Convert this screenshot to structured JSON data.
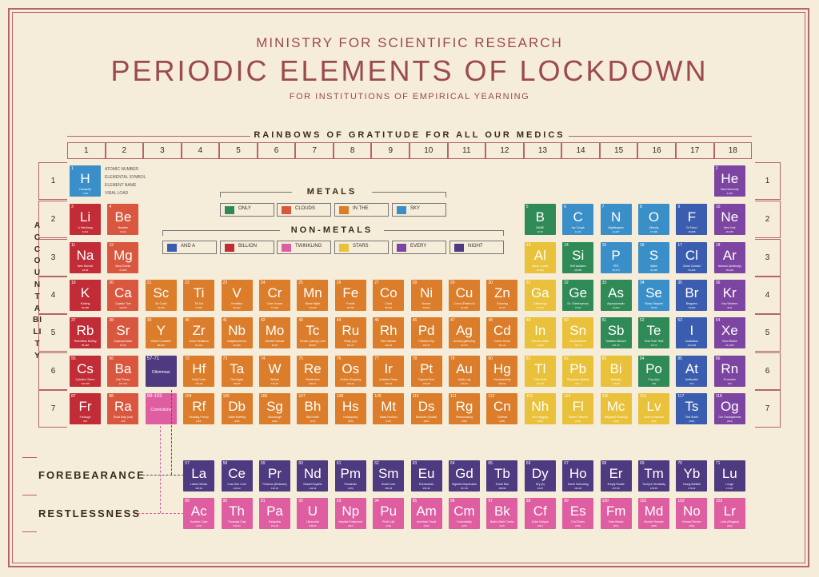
{
  "header": {
    "ministry": "MINISTRY FOR SCIENTIFIC RESEARCH",
    "title": "PERIODIC ELEMENTS OF LOCKDOWN",
    "subtitle": "FOR INSTITUTIONS OF EMPIRICAL YEARNING",
    "banner": "RAINBOWS OF GRATITUDE FOR ALL OUR MEDICS"
  },
  "groups": [
    "1",
    "2",
    "3",
    "4",
    "5",
    "6",
    "7",
    "8",
    "9",
    "10",
    "11",
    "12",
    "13",
    "14",
    "15",
    "16",
    "17",
    "18"
  ],
  "periods": [
    "1",
    "2",
    "3",
    "4",
    "5",
    "6",
    "7"
  ],
  "side_label": "ACCOUNTABILITY",
  "key": {
    "atomic": "ATOMIC NUMBER",
    "symbol": "ELEMENTAL SYMBOL",
    "name": "ELEMENT NAME",
    "load": "VIRAL LOAD"
  },
  "legend": {
    "metals_title": "METALS",
    "nonmetals_title": "NON-METALS",
    "metals": [
      {
        "label": "ONLY",
        "color": "#2f8a57"
      },
      {
        "label": "CLOUDS",
        "color": "#d9573f"
      },
      {
        "label": "IN THE",
        "color": "#db7d2a"
      },
      {
        "label": "SKY",
        "color": "#3a8fc9"
      }
    ],
    "nonmetals": [
      {
        "label": "AND A",
        "color": "#3b5db0"
      },
      {
        "label": "BILLION",
        "color": "#c22c36"
      },
      {
        "label": "TWINKLING",
        "color": "#de5ea1"
      },
      {
        "label": "STARS",
        "color": "#e9c13a"
      },
      {
        "label": "EVERY",
        "color": "#7c45a1"
      },
      {
        "label": "NIGHT",
        "color": "#4d3a80"
      }
    ]
  },
  "row_labels": {
    "lanthanide": "FOREBEARANCE",
    "actinide": "RESTLESSNESS"
  },
  "colors": {
    "blue": "#3a8fc9",
    "red": "#c22c36",
    "salmon": "#d9573f",
    "orange": "#db7d2a",
    "green": "#2f8a57",
    "yellow": "#e9c13a",
    "purple": "#7c45a1",
    "indigo": "#4d3a80",
    "pink": "#de5ea1",
    "navy": "#3b5db0"
  },
  "elements": [
    {
      "n": "1",
      "s": "H",
      "name": "Humanity",
      "v": "7,900",
      "c": "blue",
      "g": 1,
      "p": 1
    },
    {
      "n": "2",
      "s": "He",
      "name": "Herd Immunity",
      "v": "4,003",
      "c": "purple",
      "g": 18,
      "p": 1
    },
    {
      "n": "3",
      "s": "Li",
      "name": "Li Wenliang",
      "v": "6,941",
      "c": "red",
      "g": 1,
      "p": 2
    },
    {
      "n": "4",
      "s": "Be",
      "name": "Breathe",
      "v": "9,012",
      "c": "salmon",
      "g": 2,
      "p": 2
    },
    {
      "n": "5",
      "s": "B",
      "name": "BAME",
      "v": "10,81",
      "c": "green",
      "g": 13,
      "p": 2
    },
    {
      "n": "6",
      "s": "C",
      "name": "dry Cough",
      "v": "12,01",
      "c": "blue",
      "g": 14,
      "p": 2
    },
    {
      "n": "7",
      "s": "N",
      "name": "Nightingales",
      "v": "14,007",
      "c": "blue",
      "g": 15,
      "p": 2
    },
    {
      "n": "8",
      "s": "O",
      "name": "Obesity",
      "v": "15,999",
      "c": "blue",
      "g": 16,
      "p": 2
    },
    {
      "n": "9",
      "s": "F",
      "name": "Dr Fauci",
      "v": "18,998",
      "c": "navy",
      "g": 17,
      "p": 2
    },
    {
      "n": "10",
      "s": "Ne",
      "name": "New York",
      "v": "20,180",
      "c": "purple",
      "g": 18,
      "p": 2
    },
    {
      "n": "11",
      "s": "Na",
      "name": "New Normal",
      "v": "22,99",
      "c": "red",
      "g": 1,
      "p": 3
    },
    {
      "n": "12",
      "s": "Mg",
      "name": "Most Grimm",
      "v": "24,305",
      "c": "salmon",
      "g": 2,
      "p": 3
    },
    {
      "n": "13",
      "s": "Al",
      "name": "Alone Lonely",
      "v": "26,982",
      "c": "yellow",
      "g": 13,
      "p": 3
    },
    {
      "n": "14",
      "s": "Si",
      "name": "Self Isolation",
      "v": "28,086",
      "c": "green",
      "g": 14,
      "p": 3
    },
    {
      "n": "15",
      "s": "P",
      "name": "PPE",
      "v": "30,974",
      "c": "blue",
      "g": 15,
      "p": 3
    },
    {
      "n": "16",
      "s": "S",
      "name": "Spike",
      "v": "32,065",
      "c": "blue",
      "g": 16,
      "p": 3
    },
    {
      "n": "17",
      "s": "Cl",
      "name": "Close Contact",
      "v": "35,453",
      "c": "navy",
      "g": 17,
      "p": 3
    },
    {
      "n": "18",
      "s": "Ar",
      "name": "Autumn (Antibody)",
      "v": "39,948",
      "c": "purple",
      "g": 18,
      "p": 3
    },
    {
      "n": "19",
      "s": "K",
      "name": "Kidding",
      "v": "39,098",
      "c": "red",
      "g": 1,
      "p": 4
    },
    {
      "n": "20",
      "s": "Ca",
      "name": "Captain Tom",
      "v": "40,078",
      "c": "salmon",
      "g": 2,
      "p": 4
    },
    {
      "n": "21",
      "s": "Sc",
      "name": "Sir Covid",
      "v": "44,956",
      "c": "orange",
      "g": 3,
      "p": 4
    },
    {
      "n": "22",
      "s": "Ti",
      "name": "Tik Tok",
      "v": "47,867",
      "c": "orange",
      "g": 4,
      "p": 4
    },
    {
      "n": "23",
      "s": "V",
      "name": "Ventilator",
      "v": "50,942",
      "c": "orange",
      "g": 5,
      "p": 4
    },
    {
      "n": "24",
      "s": "Cr",
      "name": "Care Homes",
      "v": "51,996",
      "c": "orange",
      "g": 6,
      "p": 4
    },
    {
      "n": "25",
      "s": "Mn",
      "name": "Movie Night",
      "v": "54,938",
      "c": "orange",
      "g": 7,
      "p": 4
    },
    {
      "n": "26",
      "s": "Fe",
      "name": "Fomite",
      "v": "55,845",
      "c": "orange",
      "g": 8,
      "p": 4
    },
    {
      "n": "27",
      "s": "Co",
      "name": "Covid",
      "v": "58,933",
      "c": "orange",
      "g": 9,
      "p": 4
    },
    {
      "n": "28",
      "s": "Ni",
      "name": "Nurses",
      "v": "58,693",
      "c": "orange",
      "g": 10,
      "p": 4
    },
    {
      "n": "29",
      "s": "Cu",
      "name": "Curve (Flatten it)",
      "v": "63,546",
      "c": "orange",
      "g": 11,
      "p": 4
    },
    {
      "n": "30",
      "s": "Zn",
      "name": "Zooming",
      "v": "65,38",
      "c": "orange",
      "g": 12,
      "p": 4
    },
    {
      "n": "31",
      "s": "Ga",
      "name": "Gatherings",
      "v": "69,723",
      "c": "yellow",
      "g": 13,
      "p": 4
    },
    {
      "n": "32",
      "s": "Ge",
      "name": "Dr. Ghebreyesus",
      "v": "72,64",
      "c": "green",
      "g": 14,
      "p": 4
    },
    {
      "n": "33",
      "s": "As",
      "name": "Asymptomatic",
      "v": "74,922",
      "c": "green",
      "g": 15,
      "p": 4
    },
    {
      "n": "34",
      "s": "Se",
      "name": "Sleep Disquiet",
      "v": "78,96",
      "c": "blue",
      "g": 16,
      "p": 4
    },
    {
      "n": "35",
      "s": "Br",
      "name": "Bergamo",
      "v": "79,904",
      "c": "navy",
      "g": 17,
      "p": 4
    },
    {
      "n": "36",
      "s": "Kr",
      "name": "Key Workers",
      "v": "83,8",
      "c": "purple",
      "g": 18,
      "p": 4
    },
    {
      "n": "37",
      "s": "Rb",
      "name": "Relentless Boiling",
      "v": "85,468",
      "c": "red",
      "g": 1,
      "p": 5
    },
    {
      "n": "38",
      "s": "Sr",
      "name": "Superspreader",
      "v": "87,62",
      "c": "salmon",
      "g": 2,
      "p": 5
    },
    {
      "n": "39",
      "s": "Y",
      "name": "Yellow Ceasefire",
      "v": "88,906",
      "c": "orange",
      "g": 3,
      "p": 5
    },
    {
      "n": "40",
      "s": "Zr",
      "name": "Zoom Relations",
      "v": "91,224",
      "c": "orange",
      "g": 4,
      "p": 5
    },
    {
      "n": "41",
      "s": "Nb",
      "name": "Neighbourhood",
      "v": "92,906",
      "c": "orange",
      "g": 5,
      "p": 5
    },
    {
      "n": "42",
      "s": "Mo",
      "name": "Morbid Outlook",
      "v": "95,96",
      "c": "orange",
      "g": 6,
      "p": 5
    },
    {
      "n": "43",
      "s": "Tc",
      "name": "Tender (caring) Care",
      "v": "98,907",
      "c": "orange",
      "g": 7,
      "p": 5
    },
    {
      "n": "44",
      "s": "Ru",
      "name": "Rainy (up)",
      "v": "101,07",
      "c": "orange",
      "g": 8,
      "p": 5
    },
    {
      "n": "45",
      "s": "Rh",
      "name": "Rich Human",
      "v": "102,91",
      "c": "orange",
      "g": 9,
      "p": 5
    },
    {
      "n": "46",
      "s": "Pd",
      "name": "Pollution Dip",
      "v": "106,42",
      "c": "orange",
      "g": 10,
      "p": 5
    },
    {
      "n": "47",
      "s": "Ag",
      "name": "Anxiety gathering",
      "v": "107,87",
      "c": "orange",
      "g": 11,
      "p": 5
    },
    {
      "n": "48",
      "s": "Cd",
      "name": "Colour Doom",
      "v": "112,41",
      "c": "orange",
      "g": 12,
      "p": 5
    },
    {
      "n": "49",
      "s": "In",
      "name": "Infection Rate",
      "v": "114,82",
      "c": "yellow",
      "g": 13,
      "p": 5
    },
    {
      "n": "50",
      "s": "Sn",
      "name": "Social Nature",
      "v": "118,71",
      "c": "yellow",
      "g": 14,
      "p": 5
    },
    {
      "n": "51",
      "s": "Sb",
      "name": "Sanitiser Bleach",
      "v": "121,76",
      "c": "green",
      "g": 15,
      "p": 5
    },
    {
      "n": "52",
      "s": "Te",
      "name": "Test! Test! Test!",
      "v": "127,6",
      "c": "green",
      "g": 16,
      "p": 5
    },
    {
      "n": "53",
      "s": "I",
      "name": "Incubation",
      "v": "126,904",
      "c": "navy",
      "g": 17,
      "p": 5
    },
    {
      "n": "54",
      "s": "Xe",
      "name": "Xeno Blame",
      "v": "131,293",
      "c": "purple",
      "g": 18,
      "p": 5
    },
    {
      "n": "55",
      "s": "Cs",
      "name": "Cytokine Storm",
      "v": "132,905",
      "c": "red",
      "g": 1,
      "p": 6
    },
    {
      "n": "56",
      "s": "Ba",
      "name": "Bat Theory",
      "v": "137,327",
      "c": "salmon",
      "g": 2,
      "p": 6
    },
    {
      "n": "57-71",
      "s": "",
      "name": "Dilemmas",
      "v": "",
      "c": "indigo",
      "g": 3,
      "p": 6
    },
    {
      "n": "72",
      "s": "Hf",
      "name": "Holy Fools",
      "v": "178,49",
      "c": "orange",
      "g": 4,
      "p": 6
    },
    {
      "n": "73",
      "s": "Ta",
      "name": "Thin Again",
      "v": "180,95",
      "c": "orange",
      "g": 5,
      "p": 6
    },
    {
      "n": "74",
      "s": "W",
      "name": "Wuhan",
      "v": "183,84",
      "c": "orange",
      "g": 6,
      "p": 6
    },
    {
      "n": "75",
      "s": "Re",
      "name": "Reinfection",
      "v": "186,21",
      "c": "orange",
      "g": 7,
      "p": 6
    },
    {
      "n": "76",
      "s": "Os",
      "name": "Online Shopping",
      "v": "190,23",
      "c": "orange",
      "g": 8,
      "p": 6
    },
    {
      "n": "77",
      "s": "Ir",
      "name": "Isolation Rinse",
      "v": "192,22",
      "c": "orange",
      "g": 9,
      "p": 6
    },
    {
      "n": "78",
      "s": "Pt",
      "name": "Pyjama Time",
      "v": "195,08",
      "c": "orange",
      "g": 10,
      "p": 6
    },
    {
      "n": "79",
      "s": "Au",
      "name": "Audio Lag",
      "v": "196,97",
      "c": "orange",
      "g": 11,
      "p": 6
    },
    {
      "n": "80",
      "s": "Hg",
      "name": "Handwashing",
      "v": "200,59",
      "c": "orange",
      "g": 12,
      "p": 6
    },
    {
      "n": "81",
      "s": "Tl",
      "name": "Toilet Rolls",
      "v": "204,38",
      "c": "yellow",
      "g": 13,
      "p": 6
    },
    {
      "n": "82",
      "s": "Pb",
      "name": "Pandemic Baking",
      "v": "207,2",
      "c": "yellow",
      "g": 14,
      "p": 6
    },
    {
      "n": "83",
      "s": "Bi",
      "name": "Birthday",
      "v": "208,98",
      "c": "yellow",
      "g": 15,
      "p": 6
    },
    {
      "n": "84",
      "s": "Po",
      "name": "Pop (Up)",
      "v": "209",
      "c": "green",
      "g": 16,
      "p": 6
    },
    {
      "n": "85",
      "s": "At",
      "name": "Antibodies",
      "v": "210",
      "c": "navy",
      "g": 17,
      "p": 6
    },
    {
      "n": "86",
      "s": "Rn",
      "name": "R number",
      "v": "222",
      "c": "purple",
      "g": 18,
      "p": 6
    },
    {
      "n": "87",
      "s": "Fr",
      "name": "Furlough",
      "v": "223",
      "c": "red",
      "g": 1,
      "p": 7
    },
    {
      "n": "88",
      "s": "Ra",
      "name": "Road Map (out)",
      "v": "226",
      "c": "salmon",
      "g": 2,
      "p": 7
    },
    {
      "n": "89-103",
      "s": "",
      "name": "Convictions",
      "v": "",
      "c": "pink",
      "g": 3,
      "p": 7
    },
    {
      "n": "104",
      "s": "Rf",
      "name": "Reading Frenzy",
      "v": "(267)",
      "c": "orange",
      "g": 4,
      "p": 7
    },
    {
      "n": "105",
      "s": "Db",
      "name": "Dalek Briefing",
      "v": "(268)",
      "c": "orange",
      "g": 5,
      "p": 7
    },
    {
      "n": "106",
      "s": "Sg",
      "name": "Sourdough",
      "v": "(269)",
      "c": "orange",
      "g": 6,
      "p": 7
    },
    {
      "n": "107",
      "s": "Bh",
      "name": "Bird Habit",
      "v": "(270)",
      "c": "orange",
      "g": 7,
      "p": 7
    },
    {
      "n": "108",
      "s": "Hs",
      "name": "Houseparty",
      "v": "(269)",
      "c": "orange",
      "g": 8,
      "p": 7
    },
    {
      "n": "109",
      "s": "Mt",
      "name": "Mask Fashion",
      "v": "(278)",
      "c": "orange",
      "g": 9,
      "p": 7
    },
    {
      "n": "110",
      "s": "Ds",
      "name": "Distance (Social)",
      "v": "(281)",
      "c": "orange",
      "g": 10,
      "p": 7
    },
    {
      "n": "111",
      "s": "Rg",
      "name": "Redecorating",
      "v": "(282)",
      "c": "orange",
      "g": 11,
      "p": 7
    },
    {
      "n": "112",
      "s": "Cn",
      "name": "Curfews",
      "v": "(285)",
      "c": "orange",
      "g": 12,
      "p": 7
    },
    {
      "n": "113",
      "s": "Nh",
      "name": "Not Hugging",
      "v": "(286)",
      "c": "yellow",
      "g": 13,
      "p": 7
    },
    {
      "n": "114",
      "s": "Fl",
      "name": "Flower Tidiness",
      "v": "(289)",
      "c": "yellow",
      "g": 14,
      "p": 7
    },
    {
      "n": "115",
      "s": "Mc",
      "name": "Mitigated Cleaning",
      "v": "(290)",
      "c": "yellow",
      "g": 15,
      "p": 7
    },
    {
      "n": "116",
      "s": "Lv",
      "name": "Level of Vaccine",
      "v": "(293)",
      "c": "yellow",
      "g": 16,
      "p": 7
    },
    {
      "n": "117",
      "s": "Ts",
      "name": "Test Scent",
      "v": "(294)",
      "c": "navy",
      "g": 17,
      "p": 7
    },
    {
      "n": "118",
      "s": "Og",
      "name": "Our Grandparents",
      "v": "(294)",
      "c": "purple",
      "g": 18,
      "p": 7
    },
    {
      "n": "57",
      "s": "La",
      "name": "Latest Glimse",
      "v": "138,91",
      "c": "indigo",
      "g": 4,
      "p": 9
    },
    {
      "n": "58",
      "s": "Ce",
      "name": "Cow Infer Cure",
      "v": "140,12",
      "c": "indigo",
      "g": 5,
      "p": 9
    },
    {
      "n": "59",
      "s": "Pr",
      "name": "Princess (Distance)",
      "v": "140,91",
      "c": "indigo",
      "g": 6,
      "p": 9
    },
    {
      "n": "60",
      "s": "Nd",
      "name": "Nasal Droplets",
      "v": "144,24",
      "c": "indigo",
      "g": 7,
      "p": 9
    },
    {
      "n": "61",
      "s": "Pm",
      "name": "Pandemic",
      "v": "(145)",
      "c": "indigo",
      "g": 8,
      "p": 9
    },
    {
      "n": "62",
      "s": "Sm",
      "name": "Small Love",
      "v": "150,36",
      "c": "indigo",
      "g": 9,
      "p": 9
    },
    {
      "n": "63",
      "s": "Eu",
      "name": "Euroboards",
      "v": "151,96",
      "c": "indigo",
      "g": 10,
      "p": 9
    },
    {
      "n": "64",
      "s": "Gd",
      "name": "Gigantic Depression",
      "v": "157,25",
      "c": "indigo",
      "g": 11,
      "p": 9
    },
    {
      "n": "65",
      "s": "Tb",
      "name": "Travel Ban",
      "v": "158,93",
      "c": "indigo",
      "g": 12,
      "p": 9
    },
    {
      "n": "66",
      "s": "Dy",
      "name": "Dry (A)",
      "v": "162,5",
      "c": "indigo",
      "g": 13,
      "p": 9
    },
    {
      "n": "67",
      "s": "Ho",
      "name": "Home Schooling",
      "v": "164,93",
      "c": "indigo",
      "g": 14,
      "p": 9
    },
    {
      "n": "68",
      "s": "Er",
      "name": "Empty Roads",
      "v": "167,26",
      "c": "indigo",
      "g": 15,
      "p": 9
    },
    {
      "n": "69",
      "s": "Tm",
      "name": "Trump's Hendacity",
      "v": "168,93",
      "c": "indigo",
      "g": 16,
      "p": 9
    },
    {
      "n": "70",
      "s": "Yb",
      "name": "Young Buhlete",
      "v": "173,04",
      "c": "indigo",
      "g": 17,
      "p": 9
    },
    {
      "n": "71",
      "s": "Lu",
      "name": "Lunge",
      "v": "174,97",
      "c": "indigo",
      "g": 18,
      "p": 9
    },
    {
      "n": "89",
      "s": "Ac",
      "name": "Another Cake",
      "v": "(227)",
      "c": "pink",
      "g": 4,
      "p": 10
    },
    {
      "n": "90",
      "s": "Th",
      "name": "Thursday Clap",
      "v": "232,04",
      "c": "pink",
      "g": 5,
      "p": 10
    },
    {
      "n": "91",
      "s": "Pa",
      "name": "Pangolins",
      "v": "231,04",
      "c": "pink",
      "g": 6,
      "p": 10
    },
    {
      "n": "92",
      "s": "U",
      "name": "Ultraviolet",
      "v": "238,03",
      "c": "pink",
      "g": 7,
      "p": 10
    },
    {
      "n": "93",
      "s": "Np",
      "name": "Nepitak Postponed",
      "v": "(237)",
      "c": "pink",
      "g": 8,
      "p": 10
    },
    {
      "n": "94",
      "s": "Pu",
      "name": "Photo Upt",
      "v": "(244)",
      "c": "pink",
      "g": 9,
      "p": 10
    },
    {
      "n": "95",
      "s": "Am",
      "name": "Armchair Travel",
      "v": "(243)",
      "c": "pink",
      "g": 10,
      "p": 10
    },
    {
      "n": "96",
      "s": "Cm",
      "name": "Comorbidity",
      "v": "(247)",
      "c": "pink",
      "g": 11,
      "p": 10
    },
    {
      "n": "97",
      "s": "Bk",
      "name": "Baths (Safe Cards)",
      "v": "(247)",
      "c": "pink",
      "g": 12,
      "p": 10
    },
    {
      "n": "98",
      "s": "Cf",
      "name": "Cider Fatigue",
      "v": "(251)",
      "c": "pink",
      "g": 13,
      "p": 10
    },
    {
      "n": "99",
      "s": "Es",
      "name": "End Times",
      "v": "(252)",
      "c": "pink",
      "g": 14,
      "p": 10
    },
    {
      "n": "100",
      "s": "Fm",
      "name": "Face Masks",
      "v": "(257)",
      "c": "pink",
      "g": 15,
      "p": 10
    },
    {
      "n": "101",
      "s": "Md",
      "name": "Murder Hornets",
      "v": "(258)",
      "c": "pink",
      "g": 16,
      "p": 10
    },
    {
      "n": "102",
      "s": "No",
      "name": "Nomad Tenses",
      "v": "(259)",
      "c": "pink",
      "g": 17,
      "p": 10
    },
    {
      "n": "103",
      "s": "Lr",
      "name": "Lobs (Reggae)",
      "v": "(262)",
      "c": "pink",
      "g": 18,
      "p": 10
    }
  ]
}
